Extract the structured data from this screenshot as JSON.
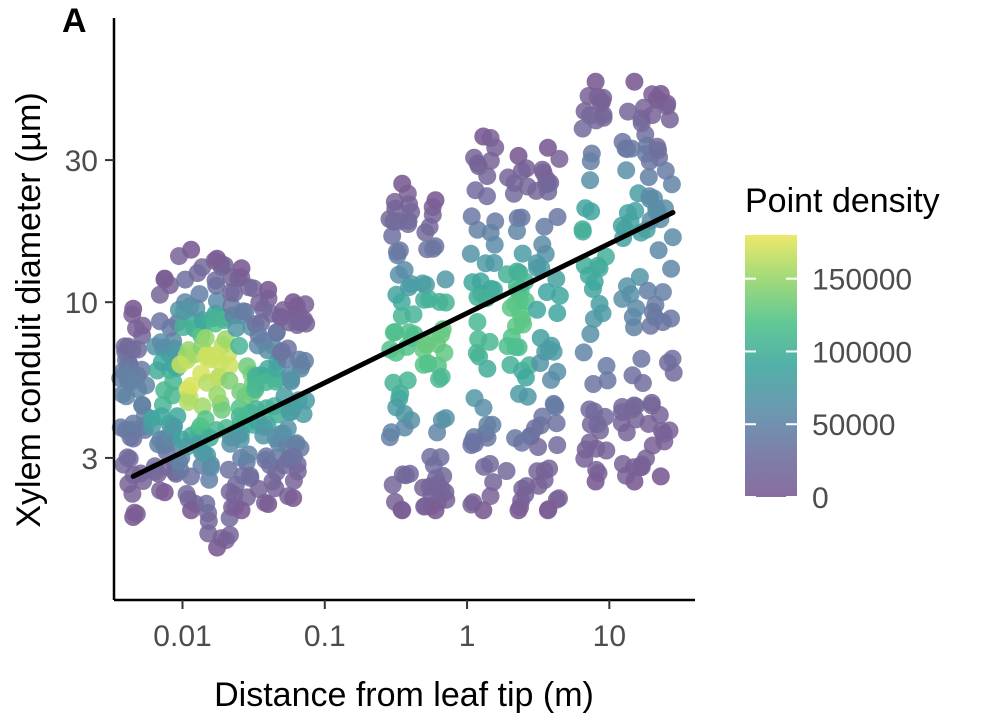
{
  "chart_data": {
    "type": "scatter",
    "panel_label": "A",
    "xlabel": "Distance from leaf tip (m)",
    "ylabel": "Xylem conduit diameter (µm)",
    "x_scale": "log10",
    "y_scale": "log10",
    "xlim": [
      0.0033,
      40
    ],
    "ylim": [
      1,
      90
    ],
    "x_ticks": [
      {
        "value": 0.01,
        "label": "0.01"
      },
      {
        "value": 0.1,
        "label": "0.1"
      },
      {
        "value": 1,
        "label": "1"
      },
      {
        "value": 10,
        "label": "10"
      }
    ],
    "y_ticks": [
      {
        "value": 3,
        "label": "3"
      },
      {
        "value": 10,
        "label": "10"
      },
      {
        "value": 30,
        "label": "30"
      }
    ],
    "grid": false,
    "legend": {
      "title": "Point density",
      "placement": "right",
      "min": 0,
      "max": 180000,
      "ticks": [
        {
          "value": 0,
          "label": "0"
        },
        {
          "value": 50000,
          "label": "50000"
        },
        {
          "value": 100000,
          "label": "100000"
        },
        {
          "value": 150000,
          "label": "150000"
        }
      ],
      "colors": [
        "#7b5d93",
        "#6e72a0",
        "#5b8ea8",
        "#3fa79f",
        "#51c28a",
        "#97d66a",
        "#e9e65a"
      ]
    },
    "trend_line": {
      "color": "#000000",
      "points": [
        {
          "x": 0.0045,
          "y": 2.6
        },
        {
          "x": 28,
          "y": 20
        }
      ]
    },
    "point_columns": [
      {
        "x": 0.0045,
        "y_min": 1.9,
        "y_max": 9.5,
        "center": 5.0,
        "peak_density": 50000
      },
      {
        "x": 0.0075,
        "y_min": 2.3,
        "y_max": 12,
        "center": 5.0,
        "peak_density": 110000
      },
      {
        "x": 0.0115,
        "y_min": 2.0,
        "y_max": 15,
        "center": 5.5,
        "peak_density": 175000
      },
      {
        "x": 0.0175,
        "y_min": 1.5,
        "y_max": 14,
        "center": 6.5,
        "peak_density": 170000
      },
      {
        "x": 0.026,
        "y_min": 2.0,
        "y_max": 13,
        "center": 5.5,
        "peak_density": 140000
      },
      {
        "x": 0.04,
        "y_min": 2.1,
        "y_max": 11,
        "center": 5.0,
        "peak_density": 110000
      },
      {
        "x": 0.06,
        "y_min": 2.2,
        "y_max": 10,
        "center": 4.5,
        "peak_density": 80000
      },
      {
        "x": 0.35,
        "y_min": 2.0,
        "y_max": 25,
        "center": 7.0,
        "peak_density": 120000
      },
      {
        "x": 0.6,
        "y_min": 2.0,
        "y_max": 22,
        "center": 7.5,
        "peak_density": 130000
      },
      {
        "x": 1.3,
        "y_min": 2.0,
        "y_max": 36,
        "center": 8.0,
        "peak_density": 110000
      },
      {
        "x": 2.3,
        "y_min": 2.0,
        "y_max": 31,
        "center": 9.0,
        "peak_density": 125000
      },
      {
        "x": 3.7,
        "y_min": 2.0,
        "y_max": 33,
        "center": 10.0,
        "peak_density": 90000
      },
      {
        "x": 8.0,
        "y_min": 2.5,
        "y_max": 55,
        "center": 16.0,
        "peak_density": 100000
      },
      {
        "x": 15.0,
        "y_min": 2.5,
        "y_max": 55,
        "center": 20.0,
        "peak_density": 85000
      },
      {
        "x": 23.0,
        "y_min": 2.6,
        "y_max": 50,
        "center": 20.0,
        "peak_density": 60000
      }
    ]
  }
}
